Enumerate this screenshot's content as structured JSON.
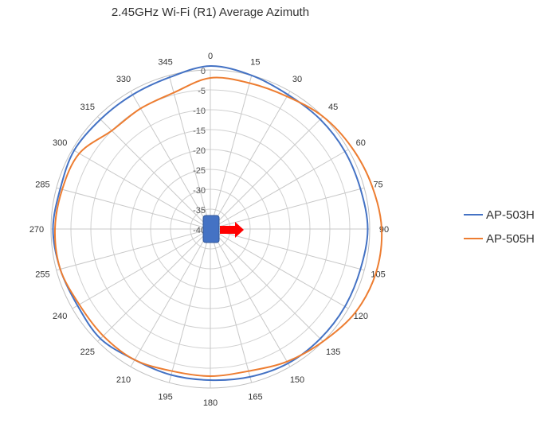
{
  "chart_data": {
    "type": "polar-line",
    "title": "2.45GHz Wi-Fi (R1) Average Azimuth",
    "angle_labels": [
      0,
      15,
      30,
      45,
      60,
      75,
      90,
      105,
      120,
      135,
      150,
      165,
      180,
      195,
      210,
      225,
      240,
      255,
      270,
      285,
      300,
      315,
      330,
      345
    ],
    "radial_labels": [
      0,
      -5,
      -10,
      -15,
      -20,
      -25,
      -30,
      -35,
      -40
    ],
    "radial_range": [
      -40,
      0
    ],
    "grid": true,
    "legend_position": "right",
    "angles": [
      0,
      15,
      30,
      45,
      60,
      75,
      90,
      105,
      120,
      135,
      150,
      165,
      180,
      195,
      210,
      225,
      240,
      255,
      270,
      285,
      300,
      315,
      330,
      345
    ],
    "series": [
      {
        "name": "AP-503H",
        "color": "#4472C4",
        "values": [
          1,
          0,
          -1,
          -1,
          -1,
          -1,
          -0.5,
          -1,
          -1,
          -1,
          -1,
          -1.5,
          -2,
          -2,
          -2,
          -1,
          -1.5,
          -1,
          -0.5,
          -1,
          -0.5,
          -1,
          -1,
          -0.5
        ]
      },
      {
        "name": "AP-505H",
        "color": "#ED7D31",
        "values": [
          -2,
          -2,
          -1.5,
          0,
          1,
          2,
          3,
          3,
          2,
          0,
          -1.5,
          -3,
          -3,
          -3,
          -2,
          -2,
          -2,
          -1,
          -1,
          -1.5,
          -2,
          -5,
          -5,
          -4.5
        ]
      }
    ]
  },
  "device_marker": {
    "body_color": "#4472C4",
    "arrow_color": "#FF0000",
    "arrow_icon": "arrow-right-icon"
  }
}
